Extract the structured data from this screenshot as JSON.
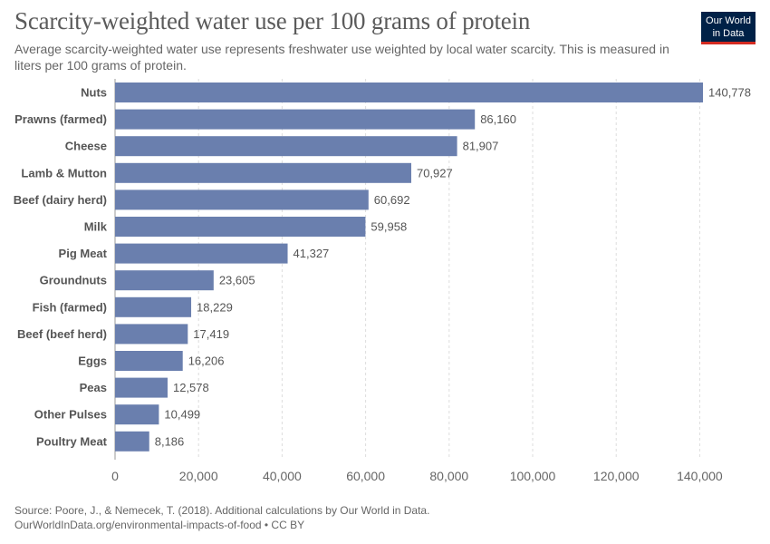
{
  "header": {
    "title": "Scarcity-weighted water use per 100 grams of protein",
    "subtitle": "Average scarcity-weighted water use represents freshwater use weighted by local water scarcity. This is measured in liters per 100 grams of protein."
  },
  "logo": {
    "line1": "Our World",
    "line2": "in Data"
  },
  "chart_data": {
    "type": "bar",
    "orientation": "horizontal",
    "title": "Scarcity-weighted water use per 100 grams of protein",
    "xlabel": "",
    "ylabel": "",
    "categories": [
      "Nuts",
      "Prawns (farmed)",
      "Cheese",
      "Lamb & Mutton",
      "Beef (dairy herd)",
      "Milk",
      "Pig Meat",
      "Groundnuts",
      "Fish (farmed)",
      "Beef (beef herd)",
      "Eggs",
      "Peas",
      "Other Pulses",
      "Poultry Meat"
    ],
    "values": [
      140778,
      86160,
      81907,
      70927,
      60692,
      59958,
      41327,
      23605,
      18229,
      17419,
      16206,
      12578,
      10499,
      8186
    ],
    "value_labels": [
      "140,778",
      "86,160",
      "81,907",
      "70,927",
      "60,692",
      "59,958",
      "41,327",
      "23,605",
      "18,229",
      "17,419",
      "16,206",
      "12,578",
      "10,499",
      "8,186"
    ],
    "xlim": [
      0,
      140778
    ],
    "xticks": [
      0,
      20000,
      40000,
      60000,
      80000,
      100000,
      120000,
      140000
    ],
    "xtick_labels": [
      "0",
      "20,000",
      "40,000",
      "60,000",
      "80,000",
      "100,000",
      "120,000",
      "140,000"
    ],
    "grid": true,
    "bar_color": "#6a7fae"
  },
  "footer": {
    "source": "Source: Poore, J., & Nemecek, T. (2018). Additional calculations by Our World in Data.",
    "link": "OurWorldInData.org/environmental-impacts-of-food • CC BY"
  }
}
